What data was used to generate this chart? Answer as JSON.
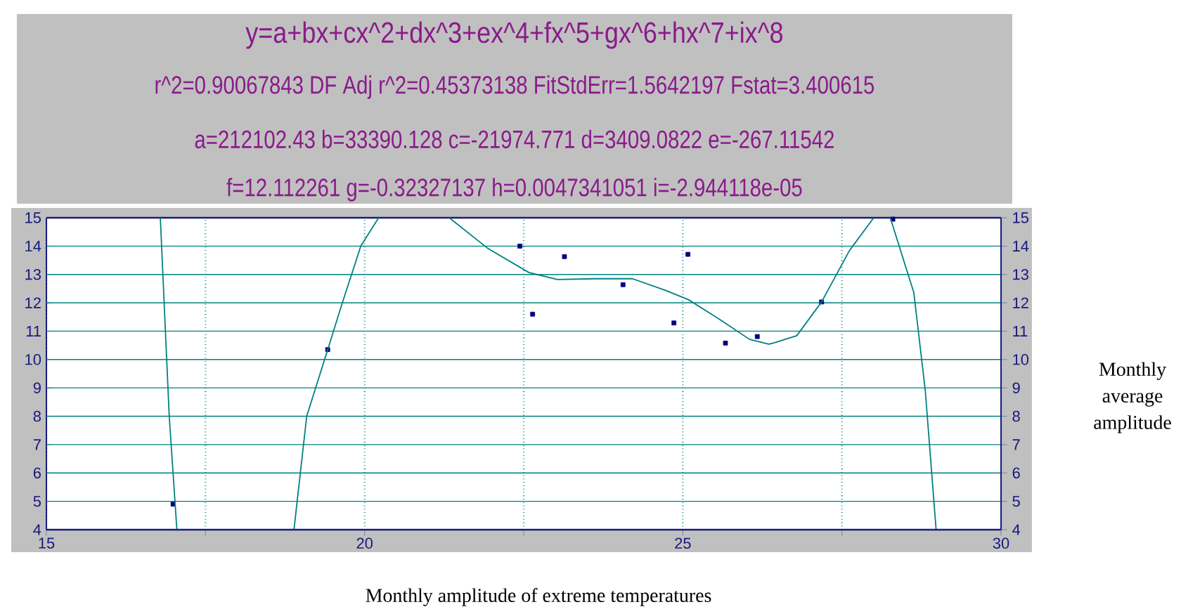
{
  "chart_data": {
    "type": "scatter",
    "title": "y=a+bx+cx^2+dx^3+ex^4+fx^5+gx^6+hx^7+ix^8",
    "annotations": [
      "r^2=0.90067843 DF Adj r^2=0.45373138 FitStdErr=1.5642197 Fstat=3.400615",
      "a=212102.43 b=33390.128 c=-21974.771 d=3409.0822 e=-267.11542",
      "f=12.112261 g=-0.32327137 h=0.0047341051 i=-2.944118e-05"
    ],
    "xlabel": "Monthly amplitude of extreme temperatures",
    "ylabel": "Monthly average amplitude",
    "xlim": [
      15,
      30
    ],
    "xticks": [
      15,
      {
        "value": 17.5,
        "label": null
      },
      20,
      {
        "value": 22.5,
        "label": null
      },
      25,
      {
        "value": 27.5,
        "label": null
      },
      30
    ],
    "ylim": [
      4,
      15
    ],
    "yticks": [
      4,
      5,
      6,
      7,
      8,
      9,
      10,
      11,
      12,
      13,
      14,
      15
    ],
    "y2lim": [
      4,
      15
    ],
    "y2ticks": [
      4,
      5,
      6,
      7,
      8,
      9,
      10,
      11,
      12,
      13,
      14,
      15
    ],
    "grid": true,
    "series": [
      {
        "color": "#000080",
        "marker": "square",
        "x": [
          16.99,
          19.42,
          22.44,
          22.64,
          23.14,
          24.06,
          24.86,
          25.08,
          25.67,
          26.17,
          27.18,
          28.3
        ],
        "values": [
          4.9,
          10.35,
          14.0,
          11.6,
          13.63,
          12.64,
          11.29,
          13.71,
          10.58,
          10.81,
          12.03,
          14.95
        ]
      },
      {
        "type": "line",
        "color": "#008080",
        "marker": "none",
        "x": [
          16.79,
          16.85,
          16.93,
          17.05,
          17.5,
          18.89,
          19.09,
          19.42,
          19.65,
          19.94,
          20.22,
          20.8,
          21.33,
          21.93,
          22.58,
          23.03,
          23.62,
          24.21,
          24.73,
          25.09,
          25.61,
          26.05,
          26.35,
          26.42,
          26.79,
          27.18,
          27.62,
          28.0,
          28.13,
          28.26,
          28.63,
          28.81,
          28.98
        ],
        "values": [
          15,
          12,
          8,
          4,
          null,
          4,
          8,
          10.35,
          12,
          14,
          15,
          null,
          15,
          13.93,
          13.07,
          12.82,
          12.85,
          12.85,
          12.44,
          12.11,
          11.37,
          10.71,
          10.54,
          10.58,
          10.84,
          12.03,
          13.85,
          15,
          null,
          15,
          12.36,
          8.9,
          4
        ]
      }
    ]
  }
}
